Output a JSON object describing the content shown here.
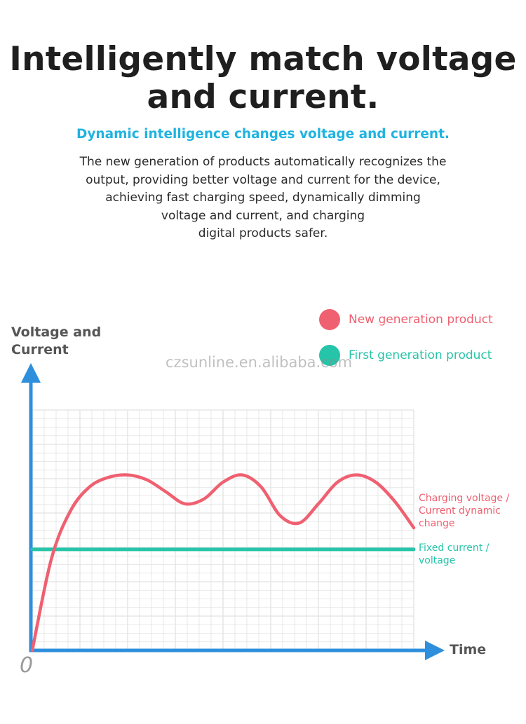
{
  "headline": "Intelligently match voltage\nand current.",
  "subheadline": "Dynamic intelligence changes voltage and current.",
  "body_text": "The new generation of products automatically recognizes the\noutput, providing better voltage and current for the device,\nachieving fast charging speed, dynamically dimming\nvoltage and current, and charging\ndigital products safer.",
  "watermark": "czsunline.en.alibaba.com",
  "colors": {
    "new_generation": "#ef6070",
    "first_generation": "#26c4a8",
    "axis": "#2e8fdc",
    "accent_text": "#1fb3e0",
    "grid": "#e2e2e2"
  },
  "chart_data": {
    "type": "line",
    "title": "",
    "xlabel": "Time",
    "ylabel": "Voltage and\nCurrent",
    "origin_label": "0",
    "grid": true,
    "legend": [
      {
        "name": "New generation product",
        "color": "#ef6070"
      },
      {
        "name": "First generation product",
        "color": "#26c4a8"
      }
    ],
    "legend_position": "top-right",
    "series": [
      {
        "name": "New generation product",
        "annotation": "Charging voltage /\nCurrent dynamic\nchange",
        "color": "#ef6070",
        "x": [
          0,
          5,
          10,
          15,
          20,
          25,
          30,
          35,
          40,
          45,
          50,
          55,
          60,
          65,
          70,
          75,
          80,
          85,
          90,
          95,
          100
        ],
        "y": [
          0,
          38,
          58,
          68,
          72,
          73,
          71,
          66,
          61,
          63,
          70,
          73,
          68,
          56,
          53,
          61,
          70,
          73,
          70,
          62,
          51
        ]
      },
      {
        "name": "First generation product",
        "annotation": "Fixed current /\nvoltage",
        "color": "#26c4a8",
        "x": [
          0,
          100
        ],
        "y": [
          42,
          42
        ]
      }
    ]
  }
}
